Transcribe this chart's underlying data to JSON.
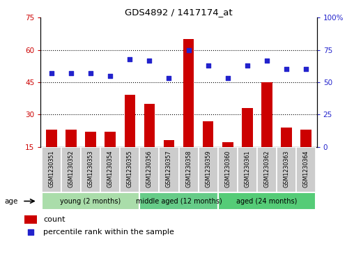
{
  "title": "GDS4892 / 1417174_at",
  "samples": [
    "GSM1230351",
    "GSM1230352",
    "GSM1230353",
    "GSM1230354",
    "GSM1230355",
    "GSM1230356",
    "GSM1230357",
    "GSM1230358",
    "GSM1230359",
    "GSM1230360",
    "GSM1230361",
    "GSM1230362",
    "GSM1230363",
    "GSM1230364"
  ],
  "count_values": [
    23,
    23,
    22,
    22,
    39,
    35,
    18,
    65,
    27,
    17,
    33,
    45,
    24,
    23
  ],
  "percentile_values": [
    57,
    57,
    57,
    55,
    68,
    67,
    53,
    75,
    63,
    53,
    63,
    67,
    60,
    60
  ],
  "bar_color": "#cc0000",
  "dot_color": "#2222cc",
  "left_ylim": [
    15,
    75
  ],
  "left_yticks": [
    15,
    30,
    45,
    60,
    75
  ],
  "right_ylim": [
    0,
    100
  ],
  "right_yticks": [
    0,
    25,
    50,
    75,
    100
  ],
  "right_yticklabels": [
    "0",
    "25",
    "50",
    "75",
    "100%"
  ],
  "group_data": [
    {
      "start": 0,
      "end": 4,
      "label": "young (2 months)",
      "color": "#aaddaa"
    },
    {
      "start": 5,
      "end": 8,
      "label": "middle aged (12 months)",
      "color": "#66cc88"
    },
    {
      "start": 9,
      "end": 13,
      "label": "aged (24 months)",
      "color": "#55cc77"
    }
  ],
  "sample_box_color": "#cccccc",
  "sample_box_edge": "white",
  "left_tick_color": "#cc0000",
  "right_tick_color": "#2222cc",
  "grid_yticks": [
    30,
    45,
    60
  ],
  "bg_color": "white"
}
